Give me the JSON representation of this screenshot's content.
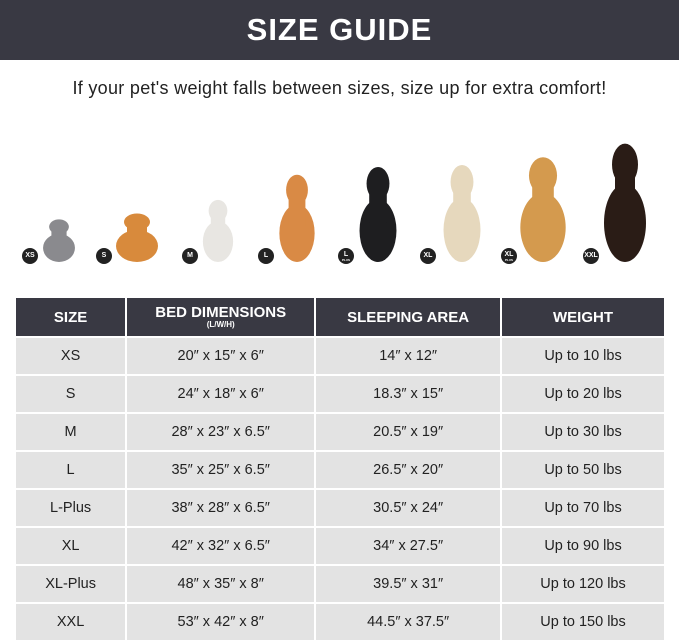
{
  "header": {
    "title": "SIZE GUIDE"
  },
  "subtitle": "If your pet's weight falls between sizes, size up for extra comfort!",
  "pets": [
    {
      "badge": "XS",
      "sub": "",
      "animal": "cat",
      "color": "#8a8a8e"
    },
    {
      "badge": "S",
      "sub": "",
      "animal": "pomeranian",
      "color": "#d88a3c"
    },
    {
      "badge": "M",
      "sub": "",
      "animal": "french-bulldog",
      "color": "#e8e6e2"
    },
    {
      "badge": "L",
      "sub": "",
      "animal": "shiba-inu",
      "color": "#d98a45"
    },
    {
      "badge": "L",
      "sub": "PLUS",
      "animal": "border-collie",
      "color": "#1e1e20"
    },
    {
      "badge": "XL",
      "sub": "",
      "animal": "labrador",
      "color": "#e6d8bd"
    },
    {
      "badge": "XL",
      "sub": "PLUS",
      "animal": "golden-retriever",
      "color": "#d49a4e"
    },
    {
      "badge": "XXL",
      "sub": "",
      "animal": "doberman",
      "color": "#2a1c16"
    }
  ],
  "table": {
    "headers": [
      {
        "label": "SIZE",
        "sub": ""
      },
      {
        "label": "BED DIMENSIONS",
        "sub": "(L/W/H)"
      },
      {
        "label": "SLEEPING AREA",
        "sub": ""
      },
      {
        "label": "WEIGHT",
        "sub": ""
      }
    ],
    "rows": [
      [
        "XS",
        "20″ x 15″ x 6″",
        "14″ x 12″",
        "Up to 10 lbs"
      ],
      [
        "S",
        "24″ x 18″ x 6″",
        "18.3″ x 15″",
        "Up to 20 lbs"
      ],
      [
        "M",
        "28″ x 23″ x 6.5″",
        "20.5″ x 19″",
        "Up to 30 lbs"
      ],
      [
        "L",
        "35″ x 25″ x 6.5″",
        "26.5″ x 20″",
        "Up to 50 lbs"
      ],
      [
        "L-Plus",
        "38″ x 28″ x 6.5″",
        "30.5″ x 24″",
        "Up to 70 lbs"
      ],
      [
        "XL",
        "42″ x 32″ x 6.5″",
        "34″ x 27.5″",
        "Up to 90 lbs"
      ],
      [
        "XL-Plus",
        "48″ x 35″ x 8″",
        "39.5″ x 31″",
        "Up to 120 lbs"
      ],
      [
        "XXL",
        "53″ x 42″ x 8″",
        "44.5″ x 37.5″",
        "Up to 150 lbs"
      ]
    ]
  }
}
